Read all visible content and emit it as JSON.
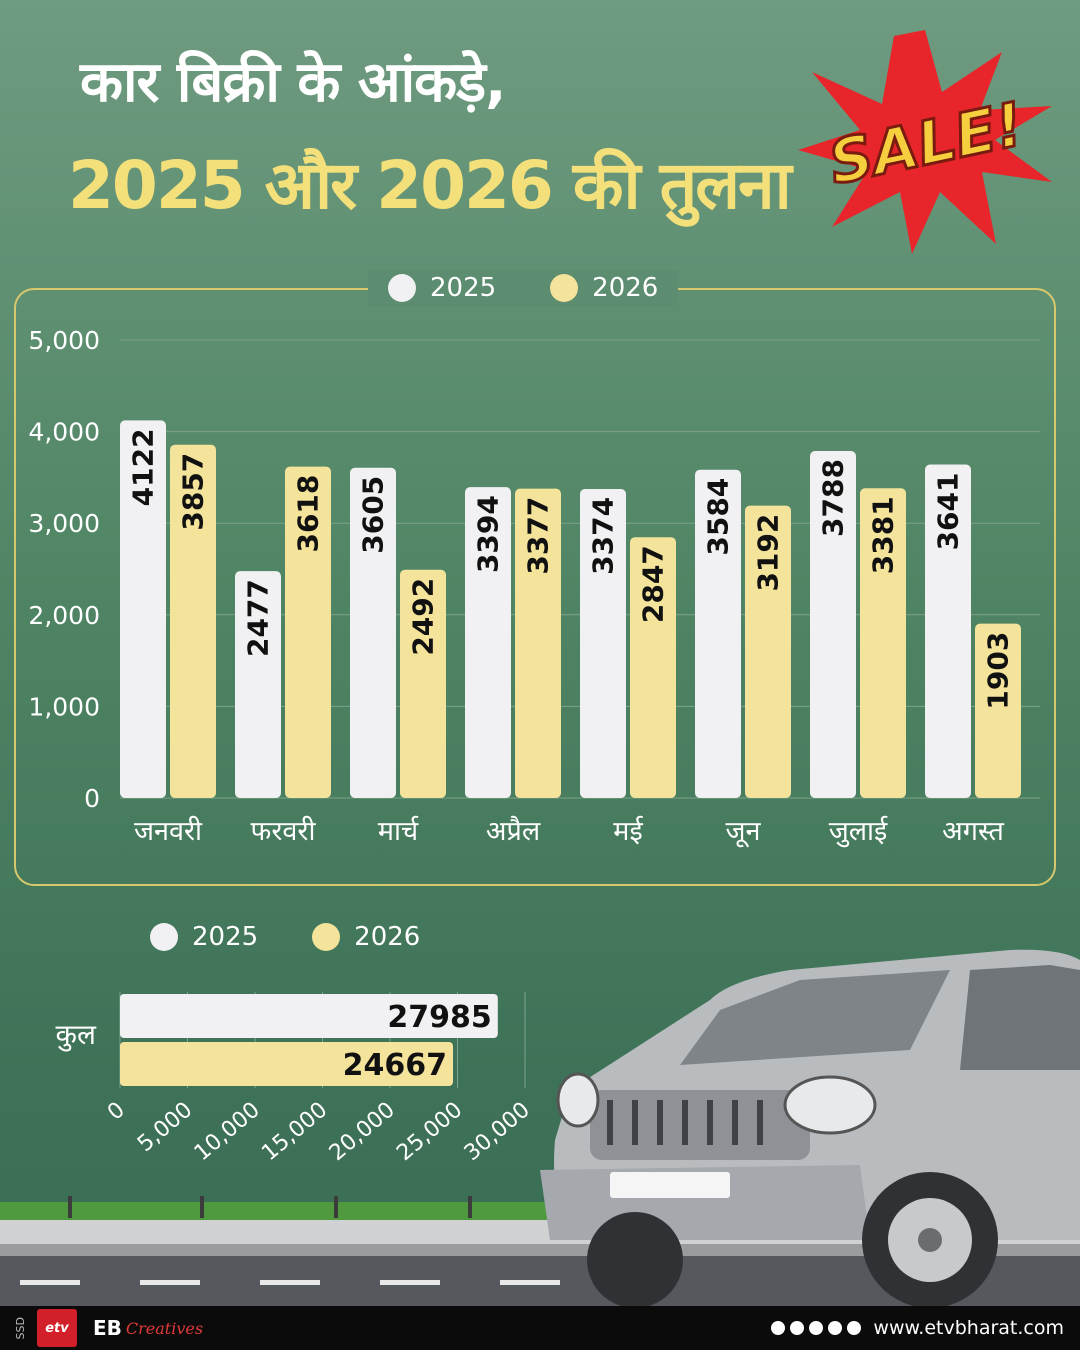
{
  "title_line1": "कार बिक्री के आंकड़े,",
  "title_line2": "2025 और 2026 की तुलना",
  "sale_badge": "SALE!",
  "legend": [
    {
      "label": "2025",
      "color": "#f1f1f3"
    },
    {
      "label": "2026",
      "color": "#f4e39a"
    }
  ],
  "chart_data": [
    {
      "type": "bar",
      "categories": [
        "जनवरी",
        "फरवरी",
        "मार्च",
        "अप्रैल",
        "मई",
        "जून",
        "जुलाई",
        "अगस्त"
      ],
      "series": [
        {
          "name": "2025",
          "values": [
            4122,
            2477,
            3605,
            3394,
            3374,
            3584,
            3788,
            3641
          ],
          "color": "#f1f1f3"
        },
        {
          "name": "2026",
          "values": [
            3857,
            3618,
            2492,
            3377,
            2847,
            3192,
            3381,
            1903
          ],
          "color": "#f4e39a"
        }
      ],
      "yticks": [
        "0",
        "1,000",
        "2,000",
        "3,000",
        "4,000",
        "5,000"
      ],
      "ylim": [
        0,
        5000
      ],
      "grid": true,
      "data_labels": true,
      "legend_position": "top"
    },
    {
      "type": "bar",
      "orientation": "horizontal",
      "categories": [
        "कुल"
      ],
      "series": [
        {
          "name": "2025",
          "values": [
            27985
          ],
          "color": "#f1f1f3"
        },
        {
          "name": "2026",
          "values": [
            24667
          ],
          "color": "#f4e39a"
        }
      ],
      "xticks": [
        "0",
        "5,000",
        "10,000",
        "15,000",
        "20,000",
        "25,000",
        "30,000"
      ],
      "xlim": [
        0,
        30000
      ],
      "grid": true,
      "data_labels": true,
      "legend_position": "top"
    }
  ],
  "footer": {
    "ssd": "SSD",
    "logo": "etv",
    "eb": "EB",
    "creatives": "Creatives",
    "website": "www.etvbharat.com"
  }
}
